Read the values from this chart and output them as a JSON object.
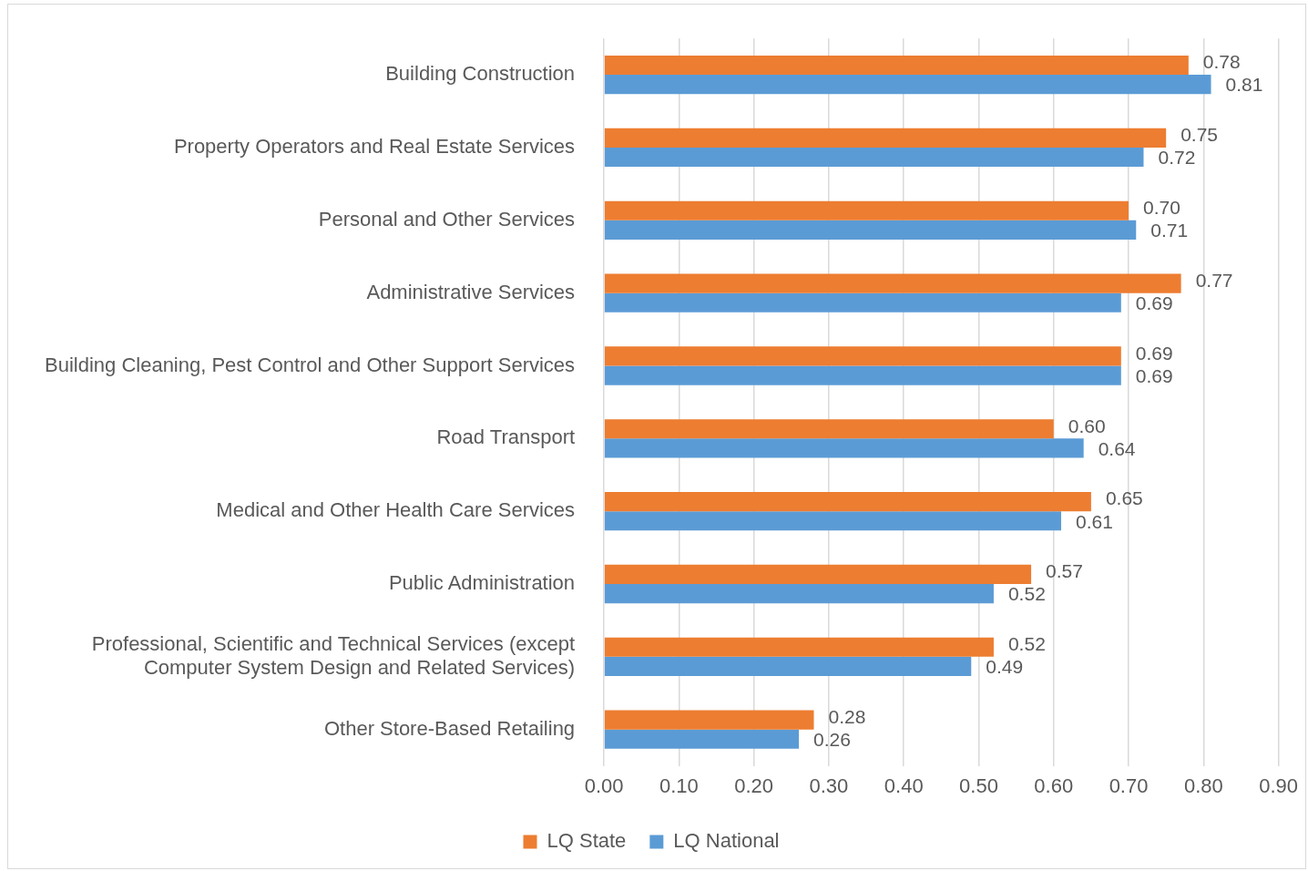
{
  "chart_data": {
    "type": "bar",
    "orientation": "horizontal",
    "categories": [
      "Building Construction",
      "Property Operators and Real Estate Services",
      "Personal and Other Services",
      "Administrative Services",
      "Building Cleaning, Pest Control and Other Support Services",
      "Road Transport",
      "Medical and Other Health Care Services",
      "Public Administration",
      "Professional, Scientific and Technical Services (except Computer System Design and Related Services)",
      "Other Store-Based Retailing"
    ],
    "series": [
      {
        "name": "LQ State",
        "color": "#ed7d31",
        "values": [
          0.78,
          0.75,
          0.7,
          0.77,
          0.69,
          0.6,
          0.65,
          0.57,
          0.52,
          0.28
        ],
        "value_labels": [
          "0.78",
          "0.75",
          "0.70",
          "0.77",
          "0.69",
          "0.60",
          "0.65",
          "0.57",
          "0.52",
          "0.28"
        ]
      },
      {
        "name": "LQ National",
        "color": "#5b9bd5",
        "values": [
          0.81,
          0.72,
          0.71,
          0.69,
          0.69,
          0.64,
          0.61,
          0.52,
          0.49,
          0.26
        ],
        "value_labels": [
          "0.81",
          "0.72",
          "0.71",
          "0.69",
          "0.69",
          "0.64",
          "0.61",
          "0.52",
          "0.49",
          "0.26"
        ]
      }
    ],
    "xlim": [
      0,
      0.9
    ],
    "xticks": [
      {
        "value": 0,
        "label": "0.00"
      },
      {
        "value": 0.1,
        "label": "0.10"
      },
      {
        "value": 0.2,
        "label": "0.20"
      },
      {
        "value": 0.3,
        "label": "0.30"
      },
      {
        "value": 0.4,
        "label": "0.40"
      },
      {
        "value": 0.5,
        "label": "0.50"
      },
      {
        "value": 0.6,
        "label": "0.60"
      },
      {
        "value": 0.7,
        "label": "0.70"
      },
      {
        "value": 0.8,
        "label": "0.80"
      },
      {
        "value": 0.9,
        "label": "0.90"
      }
    ],
    "grid": "x",
    "legend": "bottom"
  }
}
